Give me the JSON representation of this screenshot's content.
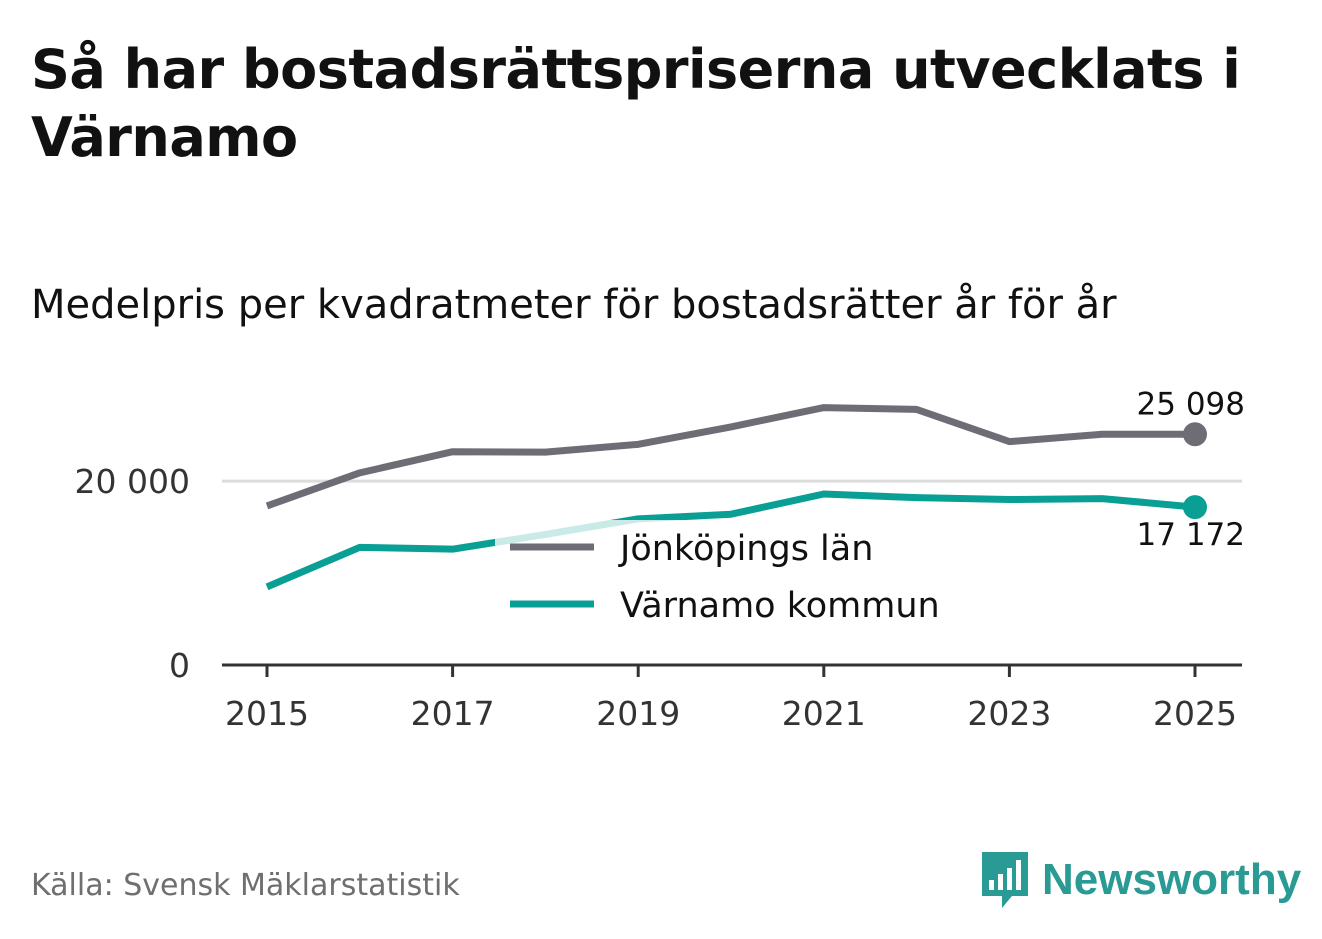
{
  "title": "Så har bostadsrättspriserna utvecklats i Värnamo",
  "subtitle": "Medelpris per kvadratmeter för bostadsrätter år för år",
  "source": "Källa: Svensk Mäklarstatistik",
  "brand": {
    "name": "Newsworthy",
    "icon": "newsworthy-logo-icon",
    "color": "#2a9a94"
  },
  "chart_data": {
    "type": "line",
    "x": [
      2015,
      2016,
      2017,
      2018,
      2019,
      2020,
      2021,
      2022,
      2023,
      2024,
      2025
    ],
    "series": [
      {
        "name": "Jönköpings län",
        "color": "#6e6d75",
        "values": [
          17300,
          20900,
          23200,
          23150,
          24000,
          25900,
          28000,
          27800,
          24300,
          25100,
          25098
        ],
        "end_label": "25 098"
      },
      {
        "name": "Värnamo kommun",
        "color": "#0a9f94",
        "values": [
          8500,
          12800,
          12600,
          14200,
          15900,
          16400,
          18600,
          18200,
          18000,
          18100,
          17172
        ],
        "end_label": "17 172"
      }
    ],
    "ylim": [
      0,
      31000
    ],
    "yticks": [
      0,
      20000
    ],
    "ytick_labels": [
      "0",
      "20 000"
    ],
    "xticks": [
      2015,
      2017,
      2019,
      2021,
      2023,
      2025
    ],
    "xtick_labels": [
      "2015",
      "2017",
      "2019",
      "2021",
      "2023",
      "2025"
    ],
    "grid": true,
    "legend": "center"
  }
}
